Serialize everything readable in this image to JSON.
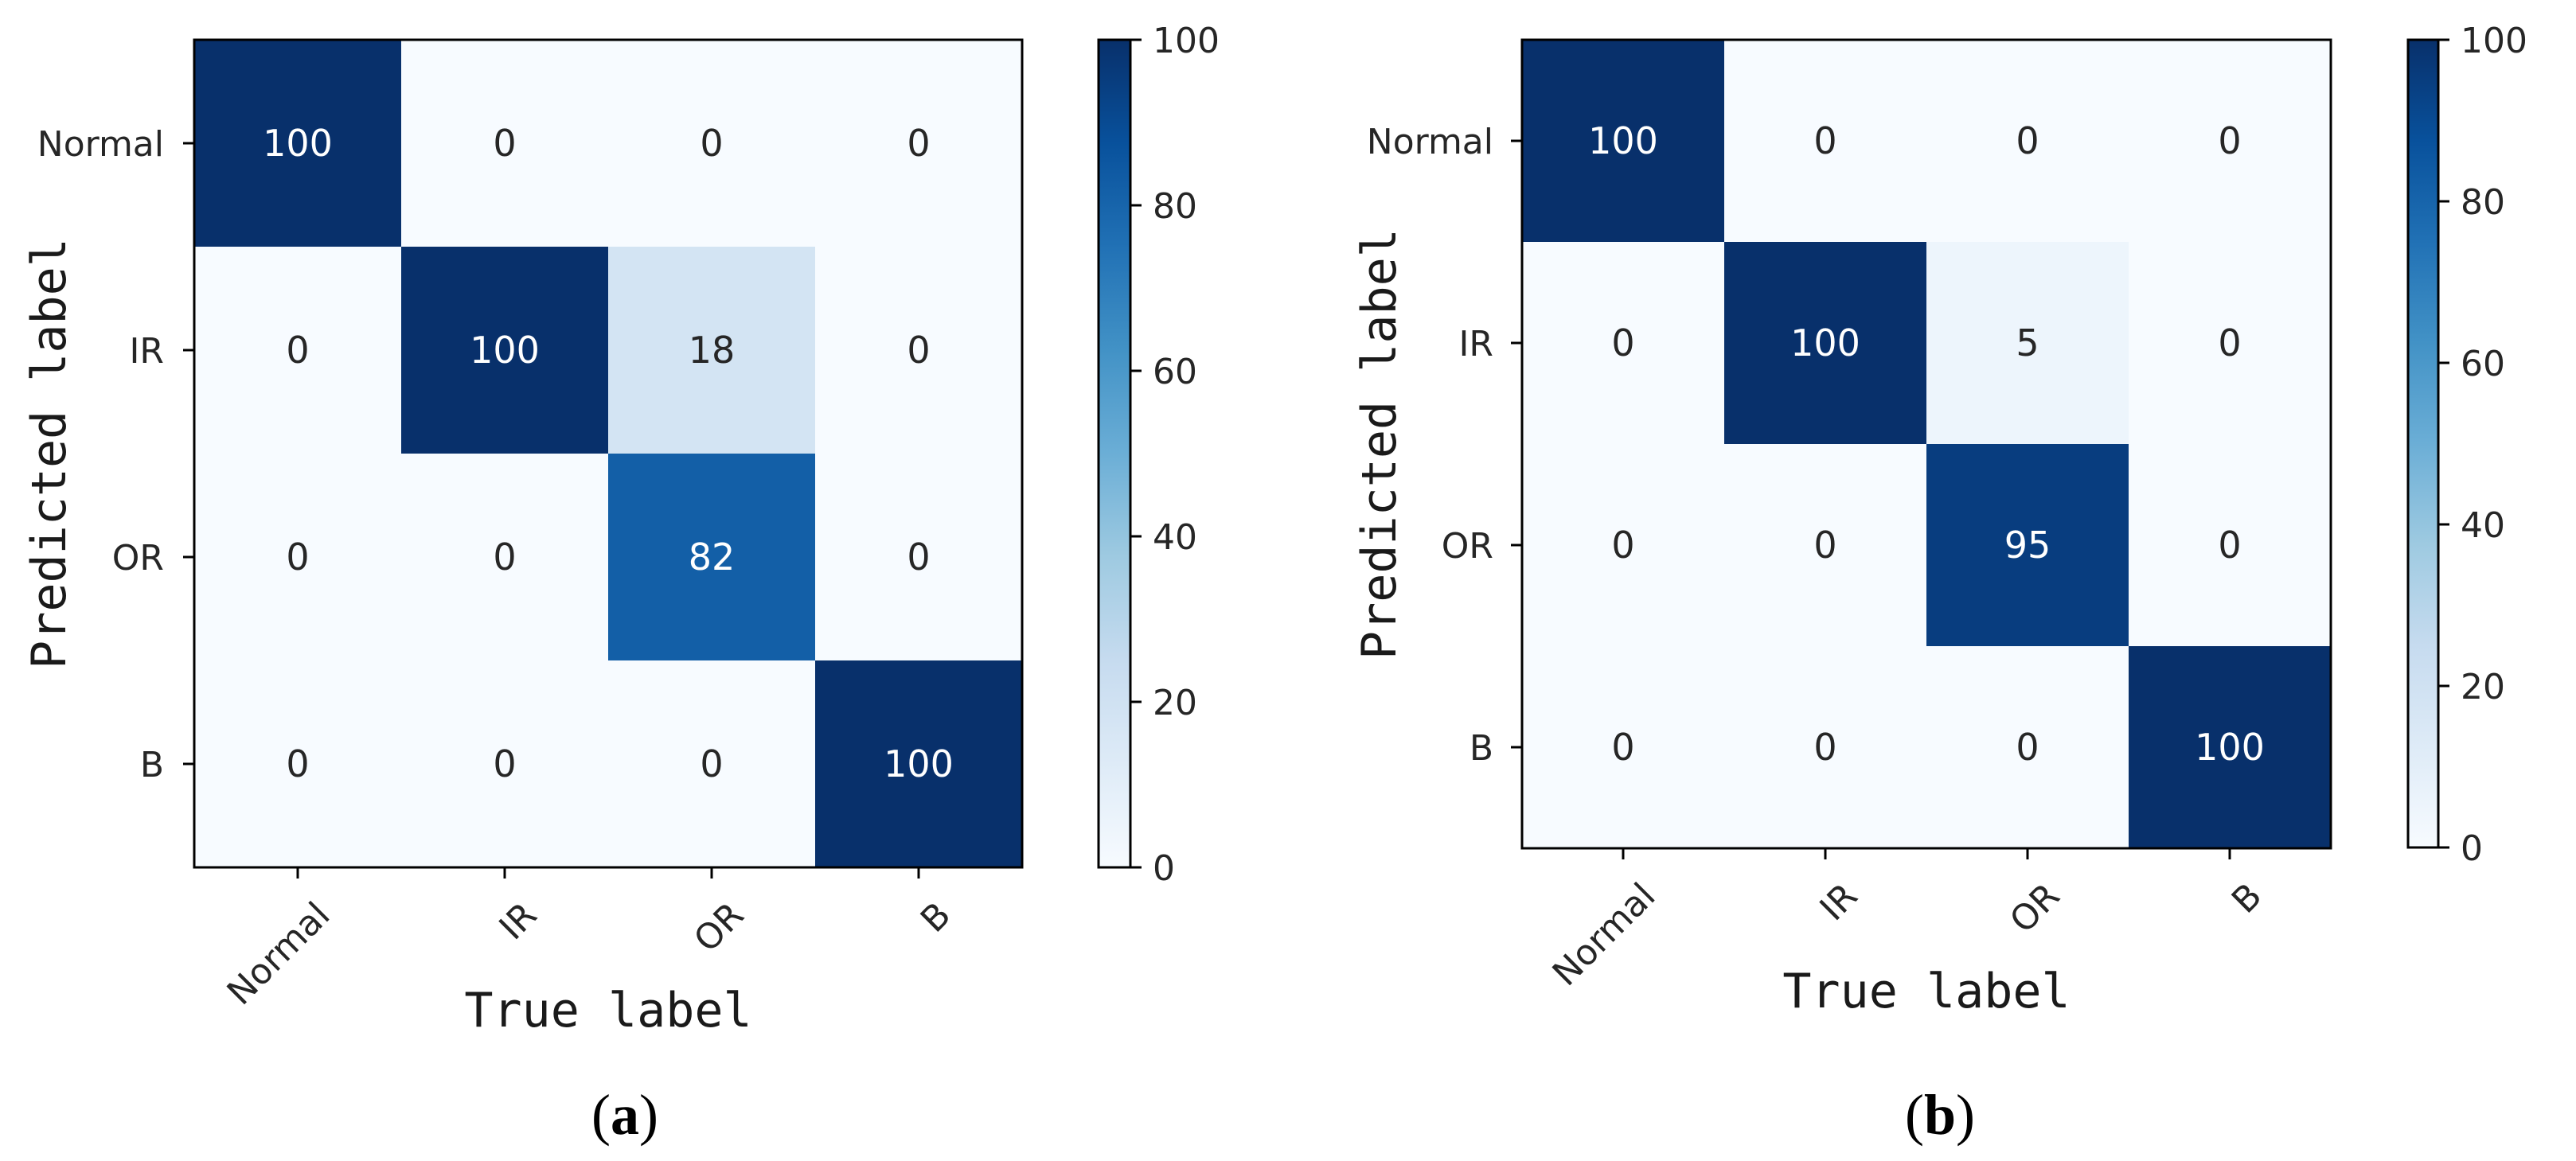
{
  "colors": {
    "scale_low": "#f7fbff",
    "scale_high": "#08306b",
    "text_on_dark": "#ffffff",
    "text_on_light": "#262626",
    "colormap": "Blues"
  },
  "chart_data": [
    {
      "type": "heatmap",
      "panel_label": "(a)",
      "panel_letter": "a",
      "x_categories": [
        "Normal",
        "IR",
        "OR",
        "B"
      ],
      "y_categories": [
        "Normal",
        "IR",
        "OR",
        "B"
      ],
      "xlabel": "True label",
      "ylabel": "Predicted label",
      "values": [
        [
          100,
          0,
          0,
          0
        ],
        [
          0,
          100,
          18,
          0
        ],
        [
          0,
          0,
          82,
          0
        ],
        [
          0,
          0,
          0,
          100
        ]
      ],
      "colorbar": {
        "range": [
          0,
          100
        ],
        "ticks": [
          0,
          20,
          40,
          60,
          80,
          100
        ]
      },
      "x_tick_rotation": "45 degrees"
    },
    {
      "type": "heatmap",
      "panel_label": "(b)",
      "panel_letter": "b",
      "x_categories": [
        "Normal",
        "IR",
        "OR",
        "B"
      ],
      "y_categories": [
        "Normal",
        "IR",
        "OR",
        "B"
      ],
      "xlabel": "True label",
      "ylabel": "Predicted label",
      "values": [
        [
          100,
          0,
          0,
          0
        ],
        [
          0,
          100,
          5,
          0
        ],
        [
          0,
          0,
          95,
          0
        ],
        [
          0,
          0,
          0,
          100
        ]
      ],
      "colorbar": {
        "range": [
          0,
          100
        ],
        "ticks": [
          0,
          20,
          40,
          60,
          80,
          100
        ]
      },
      "x_tick_rotation": "45 degrees"
    }
  ]
}
